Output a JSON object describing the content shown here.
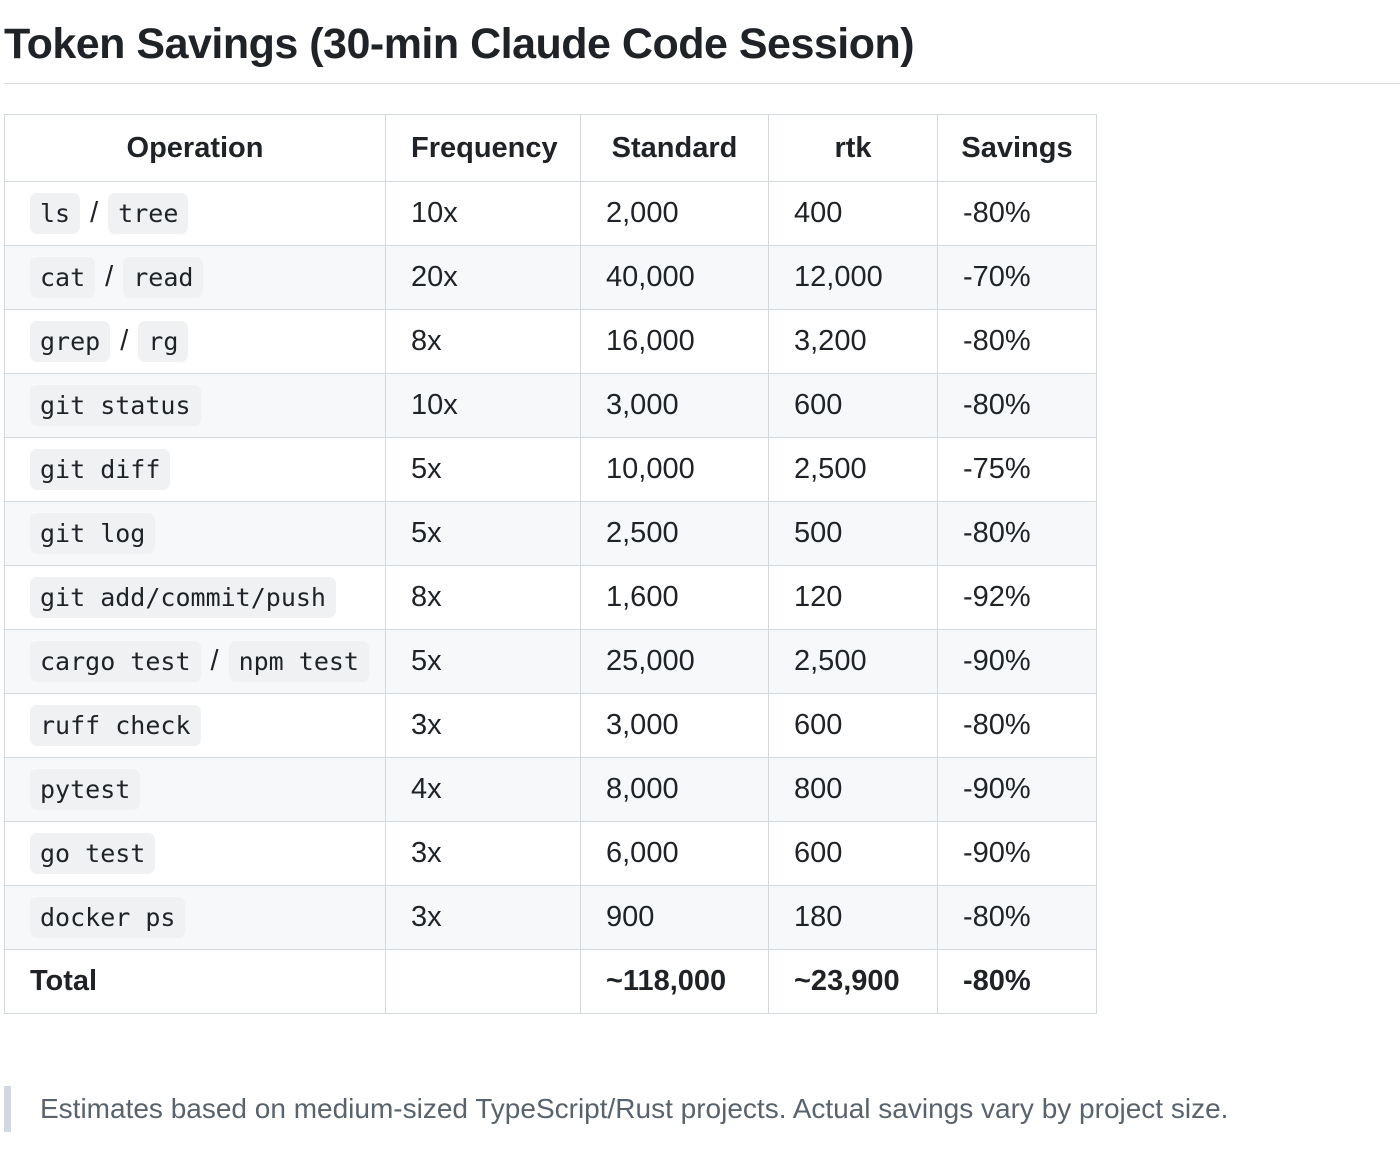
{
  "title": "Token Savings (30-min Claude Code Session)",
  "table": {
    "headers": {
      "operation": "Operation",
      "frequency": "Frequency",
      "standard": "Standard",
      "rtk": "rtk",
      "savings": "Savings"
    },
    "separator": "/",
    "rows": [
      {
        "commands": [
          "ls",
          "tree"
        ],
        "frequency": "10x",
        "standard": "2,000",
        "rtk": "400",
        "savings": "-80%"
      },
      {
        "commands": [
          "cat",
          "read"
        ],
        "frequency": "20x",
        "standard": "40,000",
        "rtk": "12,000",
        "savings": "-70%"
      },
      {
        "commands": [
          "grep",
          "rg"
        ],
        "frequency": "8x",
        "standard": "16,000",
        "rtk": "3,200",
        "savings": "-80%"
      },
      {
        "commands": [
          "git status"
        ],
        "frequency": "10x",
        "standard": "3,000",
        "rtk": "600",
        "savings": "-80%"
      },
      {
        "commands": [
          "git diff"
        ],
        "frequency": "5x",
        "standard": "10,000",
        "rtk": "2,500",
        "savings": "-75%"
      },
      {
        "commands": [
          "git log"
        ],
        "frequency": "5x",
        "standard": "2,500",
        "rtk": "500",
        "savings": "-80%"
      },
      {
        "commands": [
          "git add/commit/push"
        ],
        "frequency": "8x",
        "standard": "1,600",
        "rtk": "120",
        "savings": "-92%"
      },
      {
        "commands": [
          "cargo test",
          "npm test"
        ],
        "frequency": "5x",
        "standard": "25,000",
        "rtk": "2,500",
        "savings": "-90%"
      },
      {
        "commands": [
          "ruff check"
        ],
        "frequency": "3x",
        "standard": "3,000",
        "rtk": "600",
        "savings": "-80%"
      },
      {
        "commands": [
          "pytest"
        ],
        "frequency": "4x",
        "standard": "8,000",
        "rtk": "800",
        "savings": "-90%"
      },
      {
        "commands": [
          "go test"
        ],
        "frequency": "3x",
        "standard": "6,000",
        "rtk": "600",
        "savings": "-90%"
      },
      {
        "commands": [
          "docker ps"
        ],
        "frequency": "3x",
        "standard": "900",
        "rtk": "180",
        "savings": "-80%"
      }
    ],
    "total": {
      "label": "Total",
      "frequency": "",
      "standard": "~118,000",
      "rtk": "~23,900",
      "savings": "-80%"
    }
  },
  "note": "Estimates based on medium-sized TypeScript/Rust projects. Actual savings vary by project size."
}
